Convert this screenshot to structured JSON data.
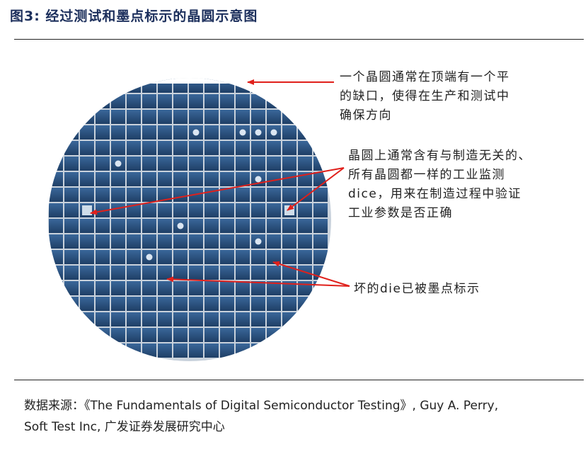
{
  "figure_title": "图3:  经过测试和墨点标示的晶圆示意图",
  "annotations": {
    "flat": {
      "lines": [
        "一个晶圆通常在顶端有一个平",
        "的缺口，使得在生产和测试中",
        "确保方向"
      ]
    },
    "test_dice": {
      "lines": [
        "晶圆上通常含有与制造无关的、",
        "所有晶圆都一样的工业监测",
        "dice，用来在制造过程中验证",
        "工业参数是否正确"
      ]
    },
    "bad_die": {
      "lines": [
        "坏的die已被墨点标示"
      ]
    }
  },
  "source": {
    "lines": [
      "数据来源：《The Fundamentals of Digital Semiconductor Testing》, Guy A. Perry,",
      "Soft Test Inc, 广发证券发展研究中心"
    ]
  },
  "colors": {
    "wafer_die": "#2a4f7c",
    "wafer_grid": "#c9d2dc",
    "ink_dot": "#dbe6f2",
    "test_die": "#cfdde9",
    "arrow": "#e0201b",
    "title": "#1c2f5c"
  },
  "wafer": {
    "grid_columns": 18,
    "grid_rows": 18,
    "ink_dots": [
      [
        9,
        3
      ],
      [
        12,
        3
      ],
      [
        13,
        3
      ],
      [
        14,
        3
      ],
      [
        4,
        5
      ],
      [
        13,
        6
      ],
      [
        8,
        9
      ],
      [
        13,
        10
      ],
      [
        6,
        11
      ]
    ],
    "test_dice": [
      [
        2,
        8
      ],
      [
        15,
        8
      ]
    ]
  }
}
